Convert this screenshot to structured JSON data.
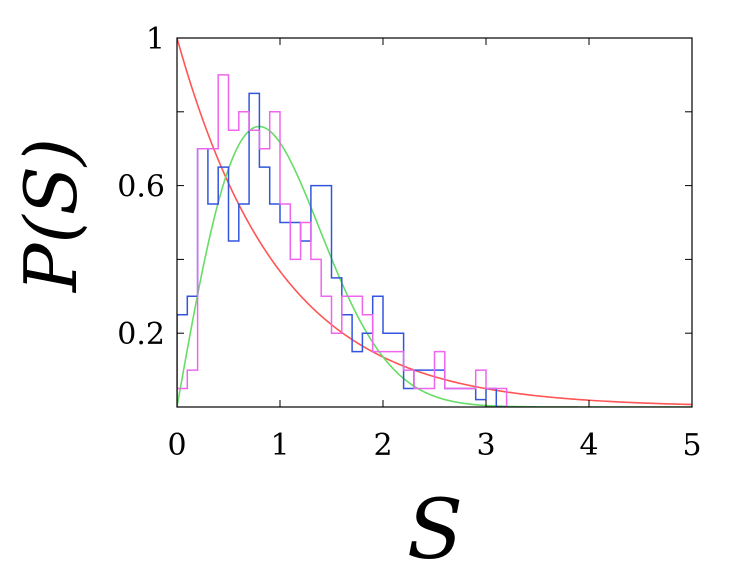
{
  "chart_data": {
    "type": "line",
    "title": "",
    "xlabel": "S",
    "ylabel": "P(S)",
    "xlim": [
      0,
      5
    ],
    "ylim": [
      0,
      1
    ],
    "x_ticks": [
      0,
      1,
      2,
      3,
      4,
      5
    ],
    "x_tick_labels": [
      "0",
      "1",
      "2",
      "3",
      "4",
      "5"
    ],
    "y_ticks": [
      0.2,
      0.6,
      1
    ],
    "y_tick_labels": [
      "0.2",
      "0.6",
      "1"
    ],
    "grid": false,
    "series": [
      {
        "kind": "curve",
        "formula": "exp(-S)",
        "color": "#ff5555"
      },
      {
        "kind": "curve",
        "formula": "(pi/2) S exp(-pi S^2 / 4)",
        "color": "#66dd66"
      },
      {
        "kind": "step-histogram",
        "color": "#3355dd",
        "bin_width": 0.1,
        "x_start": 0,
        "values": [
          0.25,
          0.3,
          0.7,
          0.55,
          0.65,
          0.45,
          0.55,
          0.85,
          0.65,
          0.55,
          0.5,
          0.5,
          0.45,
          0.6,
          0.6,
          0.35,
          0.25,
          0.15,
          0.2,
          0.3,
          0.2,
          0.2,
          0.05,
          0.1,
          0.1,
          0.1,
          0.05,
          0.05,
          0.05,
          0.02,
          0.05,
          0.0
        ]
      },
      {
        "kind": "step-histogram",
        "color": "#ee66ee",
        "bin_width": 0.1,
        "x_start": 0,
        "values": [
          0.05,
          0.1,
          0.7,
          0.7,
          0.9,
          0.75,
          0.8,
          0.75,
          0.7,
          0.8,
          0.55,
          0.4,
          0.5,
          0.4,
          0.3,
          0.2,
          0.3,
          0.3,
          0.25,
          0.15,
          0.15,
          0.15,
          0.1,
          0.05,
          0.05,
          0.15,
          0.05,
          0.05,
          0.05,
          0.1,
          0.05,
          0.05
        ]
      }
    ]
  }
}
